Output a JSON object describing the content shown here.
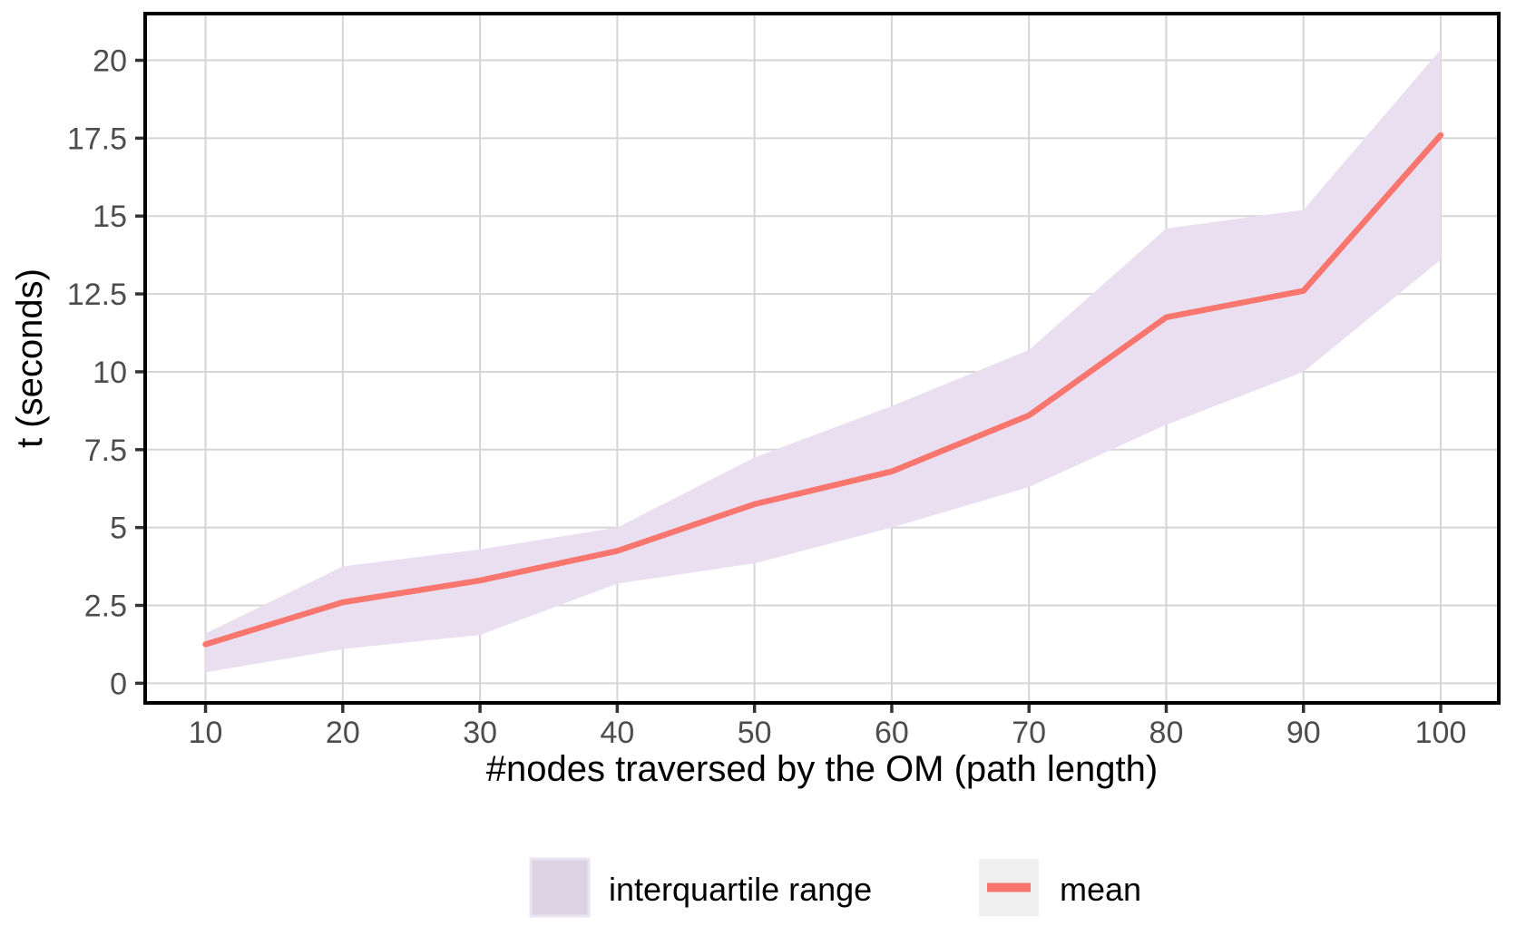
{
  "chart_data": {
    "type": "line",
    "title": "",
    "xlabel": "#nodes traversed by the OM (path length)",
    "ylabel": "t (seconds)",
    "x": [
      10,
      20,
      30,
      40,
      50,
      60,
      70,
      80,
      90,
      100
    ],
    "x_tick_labels": [
      "10",
      "20",
      "30",
      "40",
      "50",
      "60",
      "70",
      "80",
      "90",
      "100"
    ],
    "y_ticks": [
      0,
      2.5,
      5,
      7.5,
      10,
      12.5,
      15,
      17.5,
      20
    ],
    "y_tick_labels": [
      "0",
      "2.5",
      "5",
      "7.5",
      "10",
      "12.5",
      "15",
      "17.5",
      "20"
    ],
    "xlim": [
      5.6,
      104.23
    ],
    "ylim": [
      -0.63,
      21.5
    ],
    "grid": true,
    "legend_position": "bottom",
    "series": [
      {
        "name": "mean",
        "kind": "line",
        "color": "#F8766D",
        "values": [
          1.25,
          2.6,
          3.3,
          4.25,
          5.75,
          6.8,
          8.6,
          11.75,
          12.6,
          17.6
        ]
      },
      {
        "name": "interquartile range",
        "kind": "band",
        "color": "#E9DFF1",
        "lower": [
          0.35,
          1.1,
          1.55,
          3.2,
          3.85,
          5.0,
          6.3,
          8.3,
          10.0,
          13.6
        ],
        "upper": [
          1.6,
          3.75,
          4.3,
          5.0,
          7.25,
          8.9,
          10.7,
          14.6,
          15.2,
          20.35
        ]
      }
    ]
  },
  "legend": {
    "iqr_label": "interquartile range",
    "mean_label": "mean",
    "iqr_swatch_color": "#DDD2E3",
    "iqr_swatch_border": "#EBE4F0",
    "mean_key_bg": "#F0F0F0",
    "mean_line_color": "#F8766D"
  },
  "styles": {
    "panel_border_color": "#000000",
    "gridline_color": "#D5D5D5",
    "tick_mark_color": "#333333",
    "tick_label_color": "#4D4D4D",
    "axis_title_color": "#000000",
    "background": "#FFFFFF"
  }
}
